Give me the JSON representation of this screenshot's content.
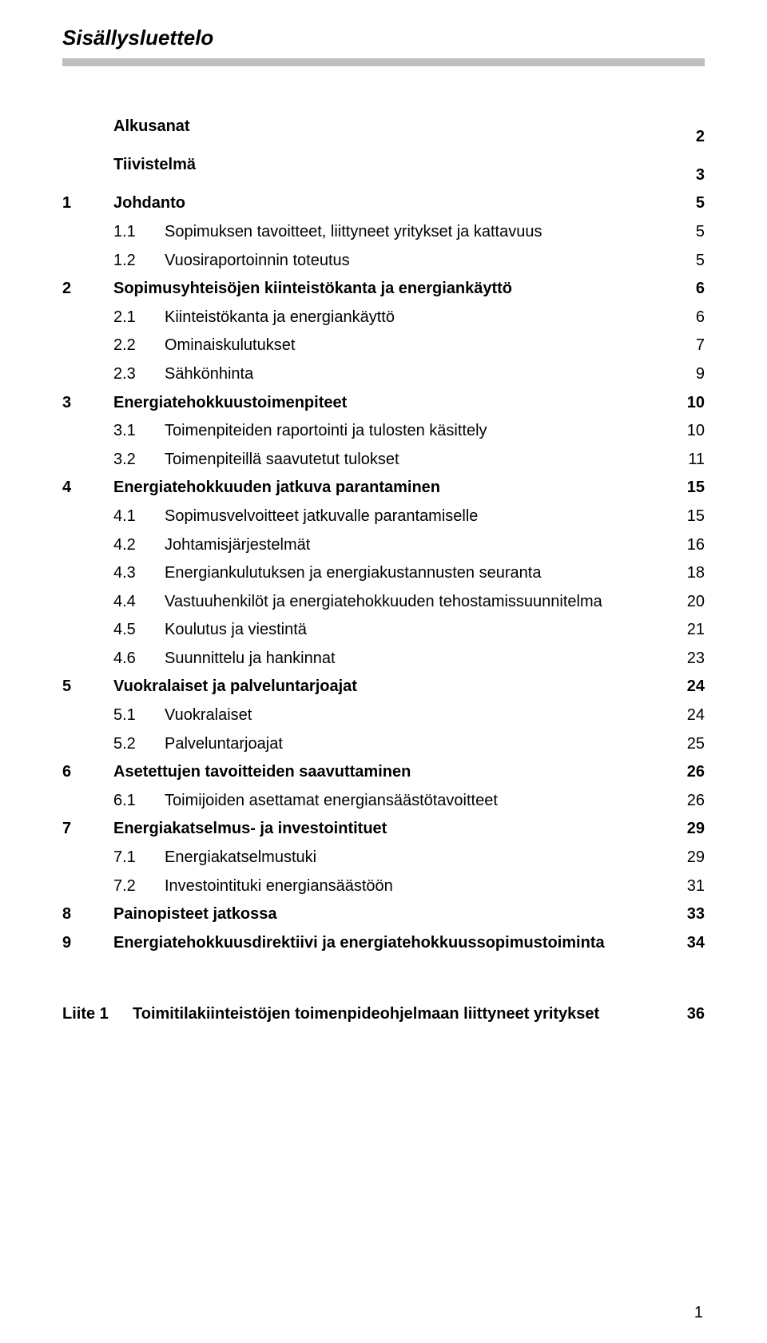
{
  "title": "Sisällysluettelo",
  "pageNumber": "1",
  "toc": [
    {
      "num": "",
      "label": "Alkusanat",
      "page": "2",
      "level": 1,
      "bold": true,
      "noNumIndent": true
    },
    {
      "num": "",
      "label": "Tiivistelmä",
      "page": "3",
      "level": 1,
      "bold": true,
      "noNumIndent": true
    },
    {
      "num": "1",
      "label": "Johdanto",
      "page": "5",
      "level": 1,
      "bold": true
    },
    {
      "num": "1.1",
      "label": "Sopimuksen tavoitteet, liittyneet yritykset ja kattavuus",
      "page": "5",
      "level": 2
    },
    {
      "num": "1.2",
      "label": "Vuosiraportoinnin toteutus",
      "page": "5",
      "level": 2
    },
    {
      "num": "2",
      "label": "Sopimusyhteisöjen kiinteistökanta ja energiankäyttö",
      "page": "6",
      "level": 1,
      "bold": true
    },
    {
      "num": "2.1",
      "label": "Kiinteistökanta ja energiankäyttö",
      "page": "6",
      "level": 2
    },
    {
      "num": "2.2",
      "label": "Ominaiskulutukset",
      "page": "7",
      "level": 2
    },
    {
      "num": "2.3",
      "label": "Sähkönhinta",
      "page": "9",
      "level": 2
    },
    {
      "num": "3",
      "label": "Energiatehokkuustoimenpiteet",
      "page": "10",
      "level": 1,
      "bold": true
    },
    {
      "num": "3.1",
      "label": "Toimenpiteiden raportointi ja tulosten käsittely",
      "page": "10",
      "level": 2
    },
    {
      "num": "3.2",
      "label": "Toimenpiteillä saavutetut tulokset",
      "page": "11",
      "level": 2
    },
    {
      "num": "4",
      "label": "Energiatehokkuuden jatkuva parantaminen",
      "page": "15",
      "level": 1,
      "bold": true
    },
    {
      "num": "4.1",
      "label": "Sopimusvelvoitteet jatkuvalle parantamiselle",
      "page": "15",
      "level": 2
    },
    {
      "num": "4.2",
      "label": "Johtamisjärjestelmät",
      "page": "16",
      "level": 2
    },
    {
      "num": "4.3",
      "label": "Energiankulutuksen ja energiakustannusten seuranta",
      "page": "18",
      "level": 2
    },
    {
      "num": "4.4",
      "label": "Vastuuhenkilöt ja energiatehokkuuden tehostamissuunnitelma",
      "page": "20",
      "level": 2
    },
    {
      "num": "4.5",
      "label": "Koulutus ja viestintä",
      "page": "21",
      "level": 2
    },
    {
      "num": "4.6",
      "label": "Suunnittelu ja hankinnat",
      "page": "23",
      "level": 2
    },
    {
      "num": "5",
      "label": "Vuokralaiset ja palveluntarjoajat",
      "page": "24",
      "level": 1,
      "bold": true
    },
    {
      "num": "5.1",
      "label": "Vuokralaiset",
      "page": "24",
      "level": 2
    },
    {
      "num": "5.2",
      "label": "Palveluntarjoajat",
      "page": "25",
      "level": 2
    },
    {
      "num": "6",
      "label": "Asetettujen tavoitteiden saavuttaminen",
      "page": "26",
      "level": 1,
      "bold": true
    },
    {
      "num": "6.1",
      "label": "Toimijoiden asettamat energiansäästötavoitteet",
      "page": "26",
      "level": 2
    },
    {
      "num": "7",
      "label": "Energiakatselmus- ja investointituet",
      "page": "29",
      "level": 1,
      "bold": true
    },
    {
      "num": "7.1",
      "label": "Energiakatselmustuki",
      "page": "29",
      "level": 2
    },
    {
      "num": "7.2",
      "label": "Investointituki energiansäästöön",
      "page": "31",
      "level": 2
    },
    {
      "num": "8",
      "label": "Painopisteet jatkossa",
      "page": "33",
      "level": 1,
      "bold": true
    },
    {
      "num": "9",
      "label": "Energiatehokkuusdirektiivi ja energiatehokkuussopimustoiminta",
      "page": "34",
      "level": 1,
      "bold": true
    }
  ],
  "appendix": {
    "num": "Liite 1",
    "label": "Toimitilakiinteistöjen toimenpideohjelmaan liittyneet yritykset",
    "page": "36"
  }
}
